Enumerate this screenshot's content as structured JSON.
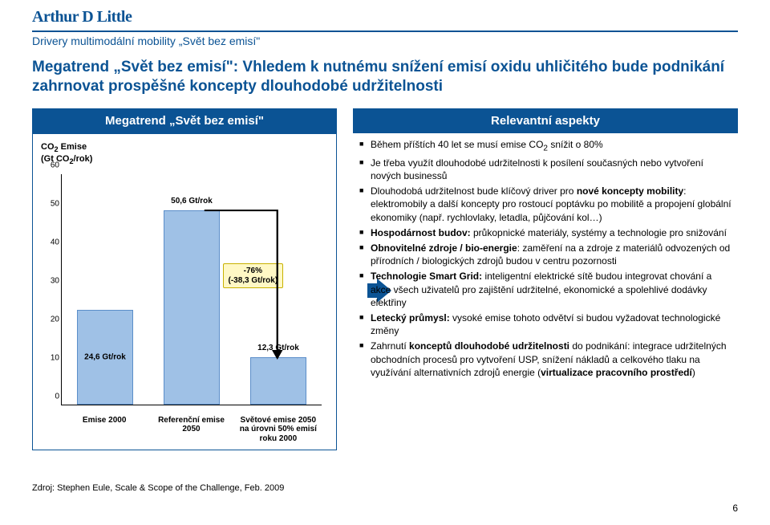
{
  "brand": "Arthur D Little",
  "subtitle": "Drivery multimodální mobility „Svět bez emisí\"",
  "headline": "Megatrend „Svět bez emisí\": Vhledem k nutnému snížení emisí oxidu uhličitého bude podnikání zahrnovat prospěšné koncepty dlouhodobé udržitelnosti",
  "left_panel_title": "Megatrend „Svět bez emisí\"",
  "right_panel_title": "Relevantní aspekty",
  "chart": {
    "y_title_html": "CO<sub>2</sub> Emise<br>(Gt CO<sub>2</sub>/rok)",
    "y_min": 0,
    "y_max": 60,
    "y_step": 10,
    "bar_color": "#9fc1e6",
    "bar_border": "#5b8ec9",
    "callout_bg": "#fff8c5",
    "callout_border": "#c8b100",
    "bars": [
      {
        "label": "Emise 2000",
        "value": 24.6,
        "value_label": "24,6 Gt/rok"
      },
      {
        "label": "Referenční emise 2050",
        "value": 50.6,
        "value_label": "50,6 Gt/rok"
      },
      {
        "label": "Světové emise 2050 na úrovni 50% emisí roku 2000",
        "value": 12.3,
        "value_label": "12,3 Gt/rok"
      }
    ],
    "delta": {
      "pct": "-76%",
      "abs": "(-38,3 Gt/rok)"
    }
  },
  "bullets_html": [
    "Během příštích 40 let se musí emise CO<sub>2</sub> snížit o 80%",
    "Je třeba využít dlouhodobé udržitelnosti k posílení současných nebo vytvoření nových businessů",
    "Dlouhodobá udržitelnost bude klíčový driver pro <b>nové koncepty mobility</b>: elektromobily a další koncepty pro rostoucí poptávku po mobilitě a propojení globální ekonomiky (např. rychlovlaky, letadla, půjčování kol…)",
    "<b>Hospodárnost budov:</b> průkopnické materiály, systémy a technologie pro snižování",
    "<b>Obnovitelné zdroje / bio-energie</b>: zaměření na a zdroje z materiálů odvozených od přírodních / biologických zdrojů budou v centru pozornosti",
    "<b>Technologie Smart Grid:</b> inteligentní elektrické sítě budou integrovat chování a akce všech uživatelů pro zajištění udržitelné, ekonomické a spolehlivé dodávky elektřiny",
    "<b>Letecký průmysl:</b> vysoké emise tohoto odvětví si budou vyžadovat technologické změny",
    "Zahrnutí <b>konceptů dlouhodobé udržitelnosti</b> do podnikání: integrace udržitelných obchodních procesů pro vytvoření USP, snížení nákladů a celkového tlaku na využívání alternativních zdrojů energie (<b>virtualizace pracovního prostředí</b>)"
  ],
  "source": "Zdroj: Stephen Eule, Scale & Scope of the Challenge, Feb. 2009",
  "page_number": "6",
  "theme": {
    "brand_color": "#0b5394"
  }
}
